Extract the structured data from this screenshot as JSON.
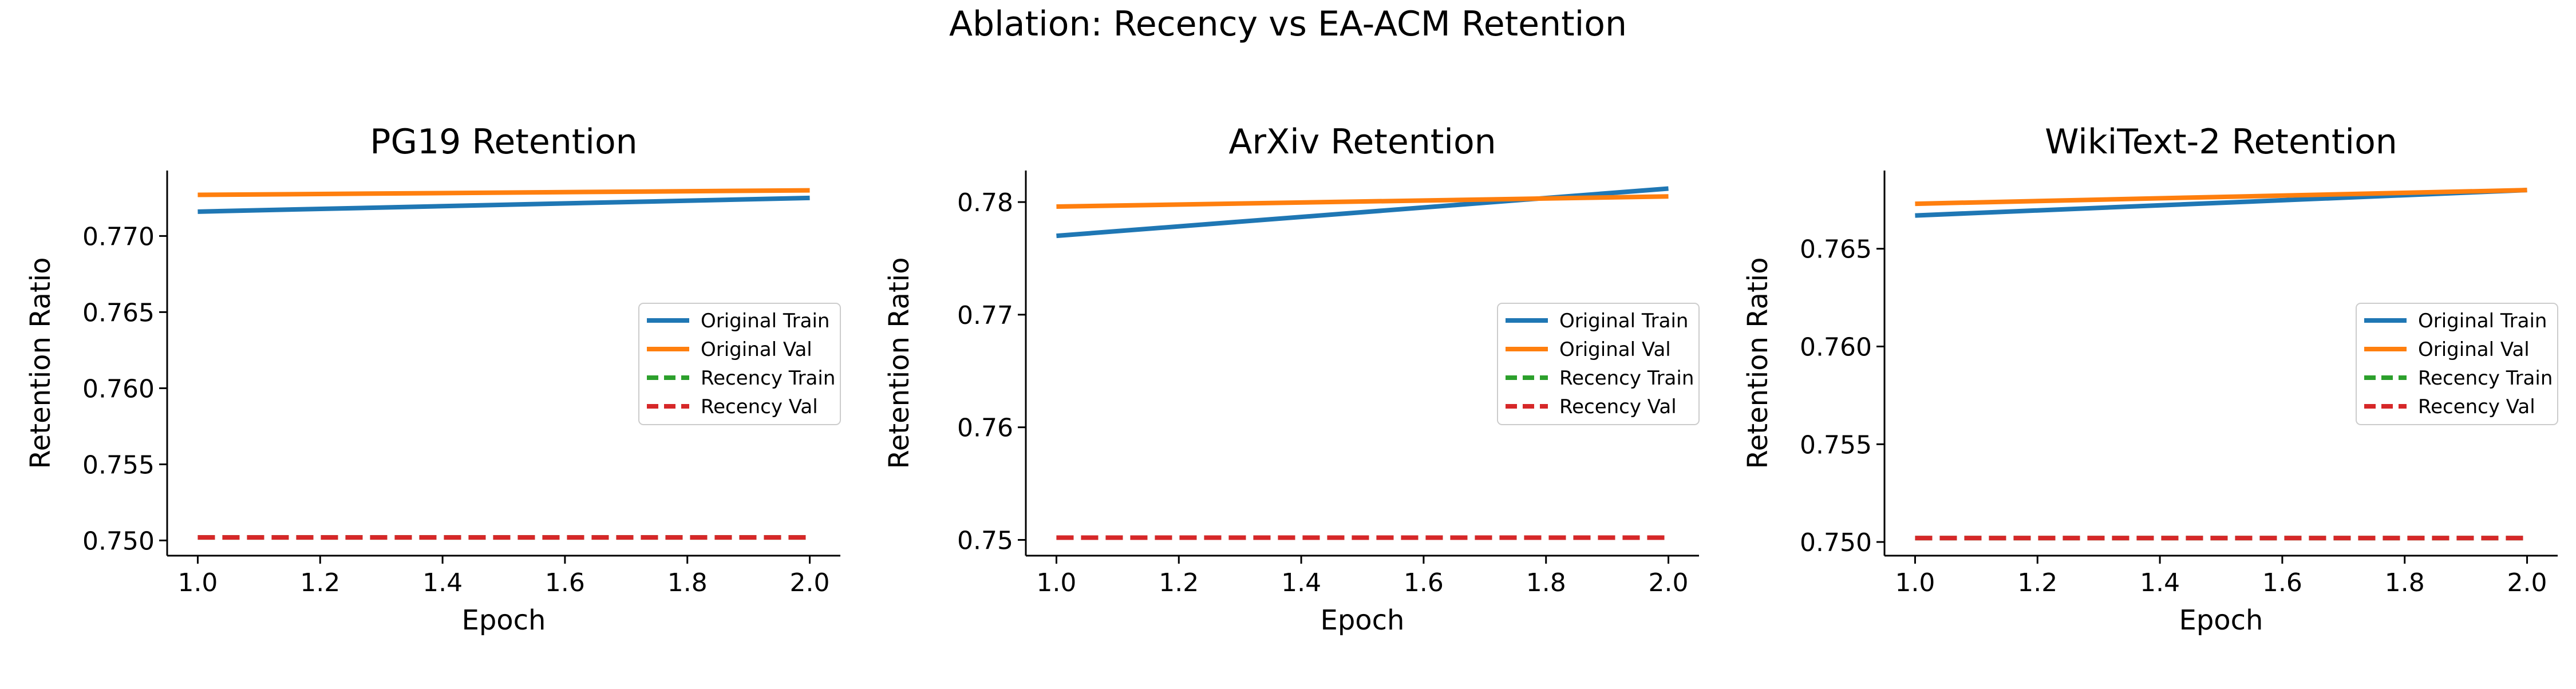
{
  "figure_title": "Ablation: Recency vs EA-ACM Retention",
  "colors": {
    "original_train": "#1f77b4",
    "original_val": "#ff7f0e",
    "recency_train": "#2ca02c",
    "recency_val": "#d62728"
  },
  "chart_data": [
    {
      "type": "line",
      "title": "PG19 Retention",
      "xlabel": "Epoch",
      "ylabel": "Retention Ratio",
      "xlim": [
        0.95,
        2.05
      ],
      "ylim": [
        0.749,
        0.7743
      ],
      "xticks": [
        1.0,
        1.2,
        1.4,
        1.6,
        1.8,
        2.0
      ],
      "xtick_labels": [
        "1.0",
        "1.2",
        "1.4",
        "1.6",
        "1.8",
        "2.0"
      ],
      "yticks": [
        0.75,
        0.755,
        0.76,
        0.765,
        0.77
      ],
      "ytick_labels": [
        "0.750",
        "0.755",
        "0.760",
        "0.765",
        "0.770"
      ],
      "grid": false,
      "legend": "center-right",
      "series": [
        {
          "name": "Original Train",
          "style": "solid",
          "color": "#1f77b4",
          "x": [
            1.0,
            2.0
          ],
          "y": [
            0.7716,
            0.7725
          ]
        },
        {
          "name": "Original Val",
          "style": "solid",
          "color": "#ff7f0e",
          "x": [
            1.0,
            2.0
          ],
          "y": [
            0.7727,
            0.773
          ]
        },
        {
          "name": "Recency Train",
          "style": "dashed",
          "color": "#2ca02c",
          "x": [
            1.0,
            2.0
          ],
          "y": [
            0.7502,
            0.7502
          ]
        },
        {
          "name": "Recency Val",
          "style": "dashed",
          "color": "#d62728",
          "x": [
            1.0,
            2.0
          ],
          "y": [
            0.7502,
            0.7502
          ]
        }
      ]
    },
    {
      "type": "line",
      "title": "ArXiv Retention",
      "xlabel": "Epoch",
      "ylabel": "Retention Ratio",
      "xlim": [
        0.95,
        2.05
      ],
      "ylim": [
        0.7486,
        0.7828
      ],
      "xticks": [
        1.0,
        1.2,
        1.4,
        1.6,
        1.8,
        2.0
      ],
      "xtick_labels": [
        "1.0",
        "1.2",
        "1.4",
        "1.6",
        "1.8",
        "2.0"
      ],
      "yticks": [
        0.75,
        0.76,
        0.77,
        0.78
      ],
      "ytick_labels": [
        "0.75",
        "0.76",
        "0.77",
        "0.78"
      ],
      "grid": false,
      "legend": "center-right",
      "series": [
        {
          "name": "Original Train",
          "style": "solid",
          "color": "#1f77b4",
          "x": [
            1.0,
            2.0
          ],
          "y": [
            0.777,
            0.7812
          ]
        },
        {
          "name": "Original Val",
          "style": "solid",
          "color": "#ff7f0e",
          "x": [
            1.0,
            2.0
          ],
          "y": [
            0.7796,
            0.7805
          ]
        },
        {
          "name": "Recency Train",
          "style": "dashed",
          "color": "#2ca02c",
          "x": [
            1.0,
            2.0
          ],
          "y": [
            0.7502,
            0.7502
          ]
        },
        {
          "name": "Recency Val",
          "style": "dashed",
          "color": "#d62728",
          "x": [
            1.0,
            2.0
          ],
          "y": [
            0.7502,
            0.7502
          ]
        }
      ]
    },
    {
      "type": "line",
      "title": "WikiText-2 Retention",
      "xlabel": "Epoch",
      "ylabel": "Retention Ratio",
      "xlim": [
        0.95,
        2.05
      ],
      "ylim": [
        0.7493,
        0.769
      ],
      "xticks": [
        1.0,
        1.2,
        1.4,
        1.6,
        1.8,
        2.0
      ],
      "xtick_labels": [
        "1.0",
        "1.2",
        "1.4",
        "1.6",
        "1.8",
        "2.0"
      ],
      "yticks": [
        0.75,
        0.755,
        0.76,
        0.765
      ],
      "ytick_labels": [
        "0.750",
        "0.755",
        "0.760",
        "0.765"
      ],
      "grid": false,
      "legend": "center-right",
      "series": [
        {
          "name": "Original Train",
          "style": "solid",
          "color": "#1f77b4",
          "x": [
            1.0,
            2.0
          ],
          "y": [
            0.7667,
            0.768
          ]
        },
        {
          "name": "Original Val",
          "style": "solid",
          "color": "#ff7f0e",
          "x": [
            1.0,
            2.0
          ],
          "y": [
            0.7673,
            0.768
          ]
        },
        {
          "name": "Recency Train",
          "style": "dashed",
          "color": "#2ca02c",
          "x": [
            1.0,
            2.0
          ],
          "y": [
            0.7502,
            0.7502
          ]
        },
        {
          "name": "Recency Val",
          "style": "dashed",
          "color": "#d62728",
          "x": [
            1.0,
            2.0
          ],
          "y": [
            0.7502,
            0.7502
          ]
        }
      ]
    }
  ]
}
